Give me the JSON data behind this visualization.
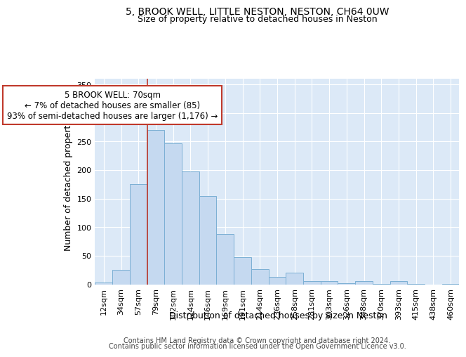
{
  "title_line1": "5, BROOK WELL, LITTLE NESTON, NESTON, CH64 0UW",
  "title_line2": "Size of property relative to detached houses in Neston",
  "xlabel": "Distribution of detached houses by size in Neston",
  "ylabel": "Number of detached properties",
  "bar_color": "#c5d9f0",
  "bar_edge_color": "#7bafd4",
  "background_color": "#dce9f7",
  "categories": [
    "12sqm",
    "34sqm",
    "57sqm",
    "79sqm",
    "102sqm",
    "124sqm",
    "146sqm",
    "169sqm",
    "191sqm",
    "214sqm",
    "236sqm",
    "258sqm",
    "281sqm",
    "303sqm",
    "326sqm",
    "348sqm",
    "370sqm",
    "393sqm",
    "415sqm",
    "438sqm",
    "460sqm"
  ],
  "values": [
    3,
    25,
    175,
    270,
    247,
    197,
    154,
    88,
    47,
    26,
    13,
    20,
    6,
    6,
    2,
    5,
    1,
    5,
    1,
    0,
    1
  ],
  "ylim": [
    0,
    360
  ],
  "yticks": [
    0,
    50,
    100,
    150,
    200,
    250,
    300,
    350
  ],
  "vline_x_index": 3,
  "vline_color": "#c0392b",
  "annotation_line1": "5 BROOK WELL: 70sqm",
  "annotation_line2": "← 7% of detached houses are smaller (85)",
  "annotation_line3": "93% of semi-detached houses are larger (1,176) →",
  "footer_line1": "Contains HM Land Registry data © Crown copyright and database right 2024.",
  "footer_line2": "Contains public sector information licensed under the Open Government Licence v3.0.",
  "title_fontsize": 10,
  "subtitle_fontsize": 9,
  "axis_label_fontsize": 9,
  "tick_fontsize": 8,
  "annotation_fontsize": 8.5,
  "footer_fontsize": 7
}
